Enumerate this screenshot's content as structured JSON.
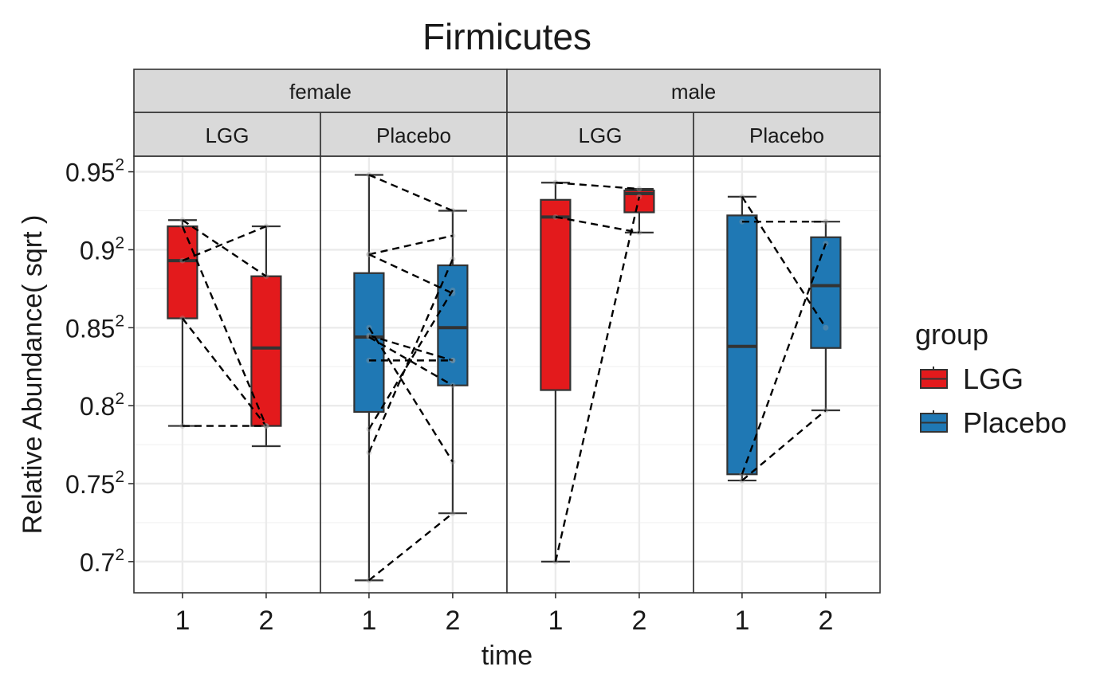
{
  "chart_data": {
    "type": "box",
    "title": "Firmicutes",
    "xlabel": "time",
    "ylabel": "Relative Abundance( sqrt )",
    "y_scale": "sqrt",
    "ylim": [
      0.68,
      0.96
    ],
    "y_ticks": [
      {
        "base": "0.7",
        "exp": "2",
        "value": 0.7
      },
      {
        "base": "0.75",
        "exp": "2",
        "value": 0.75
      },
      {
        "base": "0.8",
        "exp": "2",
        "value": 0.8
      },
      {
        "base": "0.85",
        "exp": "2",
        "value": 0.85
      },
      {
        "base": "0.9",
        "exp": "2",
        "value": 0.9
      },
      {
        "base": "0.95",
        "exp": "2",
        "value": 0.95
      }
    ],
    "x_categories": [
      "1",
      "2"
    ],
    "grid": true,
    "legend": {
      "title": "group",
      "position": "right",
      "entries": [
        {
          "label": "LGG",
          "color": "#E31A1C"
        },
        {
          "label": "Placebo",
          "color": "#1F78B4"
        }
      ]
    },
    "facet_rows": [
      {
        "label": "female",
        "span": [
          0,
          1
        ]
      },
      {
        "label": "male",
        "span": [
          2,
          3
        ]
      }
    ],
    "panels": [
      {
        "sex": "female",
        "group": "LGG",
        "color": "#E31A1C",
        "boxes": [
          {
            "time": "1",
            "whisker_low": 0.787,
            "q1": 0.856,
            "median": 0.893,
            "q3": 0.915,
            "whisker_high": 0.919
          },
          {
            "time": "2",
            "whisker_low": 0.774,
            "q1": 0.787,
            "median": 0.837,
            "q3": 0.883,
            "whisker_high": 0.915
          }
        ],
        "pairs": [
          [
            0.919,
            0.883
          ],
          [
            0.915,
            0.787
          ],
          [
            0.893,
            0.915
          ],
          [
            0.856,
            0.787
          ],
          [
            0.787,
            0.787
          ]
        ]
      },
      {
        "sex": "female",
        "group": "Placebo",
        "color": "#1F78B4",
        "boxes": [
          {
            "time": "1",
            "whisker_low": 0.688,
            "q1": 0.796,
            "median": 0.844,
            "q3": 0.885,
            "whisker_high": 0.948
          },
          {
            "time": "2",
            "whisker_low": 0.731,
            "q1": 0.813,
            "median": 0.85,
            "q3": 0.89,
            "whisker_high": 0.925
          }
        ],
        "pairs": [
          [
            0.948,
            0.925
          ],
          [
            0.897,
            0.909
          ],
          [
            0.897,
            0.872
          ],
          [
            0.85,
            0.764
          ],
          [
            0.845,
            0.829
          ],
          [
            0.844,
            0.813
          ],
          [
            0.829,
            0.829
          ],
          [
            0.785,
            0.874
          ],
          [
            0.77,
            0.894
          ],
          [
            0.688,
            0.731
          ]
        ]
      },
      {
        "sex": "male",
        "group": "LGG",
        "color": "#E31A1C",
        "boxes": [
          {
            "time": "1",
            "whisker_low": 0.7,
            "q1": 0.81,
            "median": 0.921,
            "q3": 0.932,
            "whisker_high": 0.943
          },
          {
            "time": "2",
            "whisker_low": 0.911,
            "q1": 0.924,
            "median": 0.936,
            "q3": 0.938,
            "whisker_high": 0.939
          }
        ],
        "pairs": [
          [
            0.943,
            0.939
          ],
          [
            0.921,
            0.911
          ],
          [
            0.7,
            0.934
          ]
        ]
      },
      {
        "sex": "male",
        "group": "Placebo",
        "color": "#1F78B4",
        "boxes": [
          {
            "time": "1",
            "whisker_low": 0.752,
            "q1": 0.756,
            "median": 0.838,
            "q3": 0.922,
            "whisker_high": 0.934
          },
          {
            "time": "2",
            "whisker_low": 0.797,
            "q1": 0.837,
            "median": 0.877,
            "q3": 0.908,
            "whisker_high": 0.918
          }
        ],
        "pairs": [
          [
            0.934,
            0.85
          ],
          [
            0.918,
            0.918
          ],
          [
            0.756,
            0.904
          ],
          [
            0.752,
            0.797
          ]
        ]
      }
    ]
  }
}
